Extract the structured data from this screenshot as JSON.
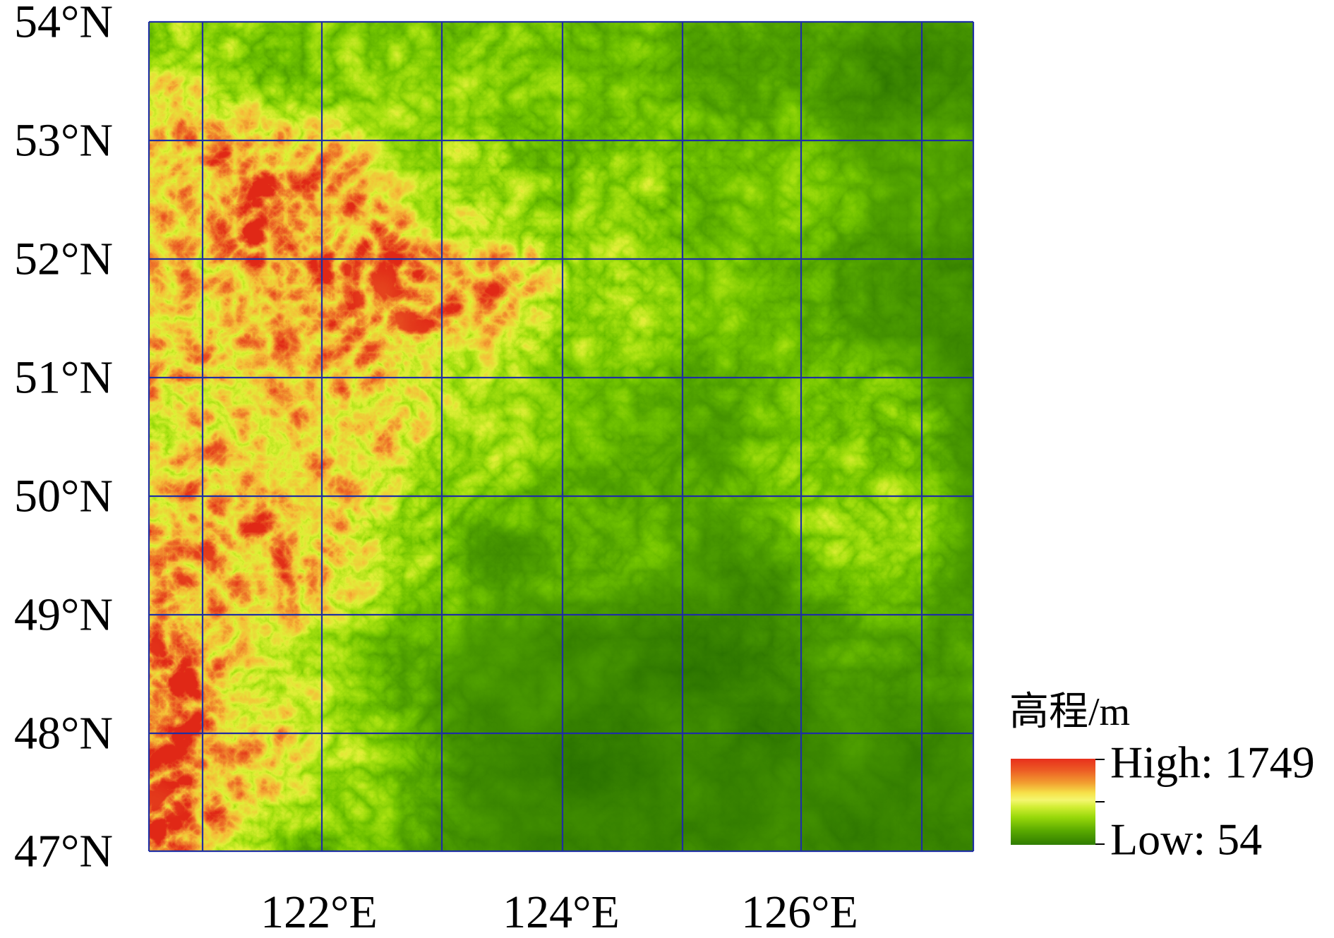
{
  "map": {
    "latitude_labels": [
      "54°N",
      "53°N",
      "52°N",
      "51°N",
      "50°N",
      "49°N",
      "48°N",
      "47°N"
    ],
    "longitude_labels": [
      "122°E",
      "124°E",
      "126°E"
    ]
  },
  "legend": {
    "title": "高程/m",
    "high_label": "High: 1749",
    "low_label": "Low: 54",
    "ramp": [
      "#e8301c",
      "#ec5a24",
      "#f29e30",
      "#f6e24a",
      "#f4f670",
      "#d2ee34",
      "#98d80a",
      "#58a800",
      "#2f7c00"
    ]
  },
  "colors": {
    "grid": "#1f2fa3"
  }
}
